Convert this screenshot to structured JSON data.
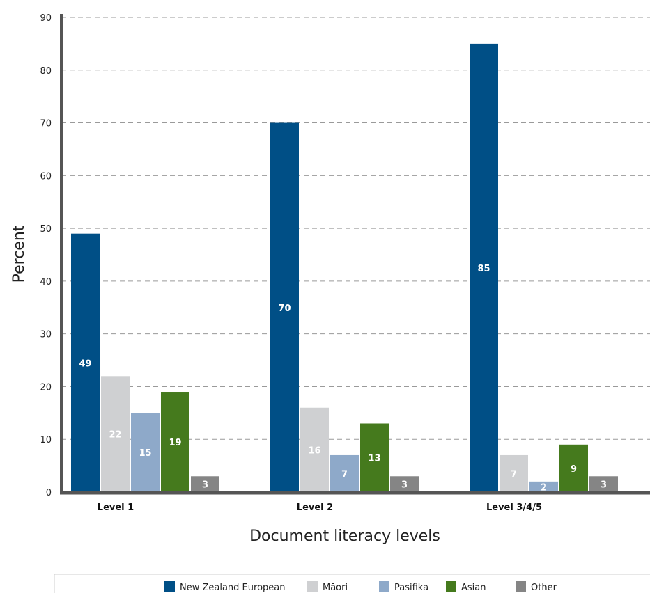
{
  "chart_data": {
    "type": "bar",
    "xlabel": "Document literacy levels",
    "ylabel": "Percent",
    "ylim": [
      0,
      90
    ],
    "yticks": [
      0,
      10,
      20,
      30,
      40,
      50,
      60,
      70,
      80,
      90
    ],
    "grid": true,
    "legend_position": "bottom",
    "categories": [
      "Level 1",
      "Level 2",
      "Level 3/4/5"
    ],
    "series": [
      {
        "name": "New Zealand European",
        "color": "#004f86",
        "label_color": "#ffffff",
        "values": [
          49,
          70,
          85
        ]
      },
      {
        "name": "Māori",
        "color": "#cfd0d2",
        "label_color": "#ffffff",
        "values": [
          22,
          16,
          7
        ]
      },
      {
        "name": "Pasifika",
        "color": "#8ea9c9",
        "label_color": "#ffffff",
        "values": [
          15,
          7,
          2
        ]
      },
      {
        "name": "Asian",
        "color": "#457a1d",
        "label_color": "#ffffff",
        "values": [
          19,
          13,
          9
        ]
      },
      {
        "name": "Other",
        "color": "#858585",
        "label_color": "#ffffff",
        "values": [
          3,
          3,
          3
        ]
      }
    ]
  }
}
